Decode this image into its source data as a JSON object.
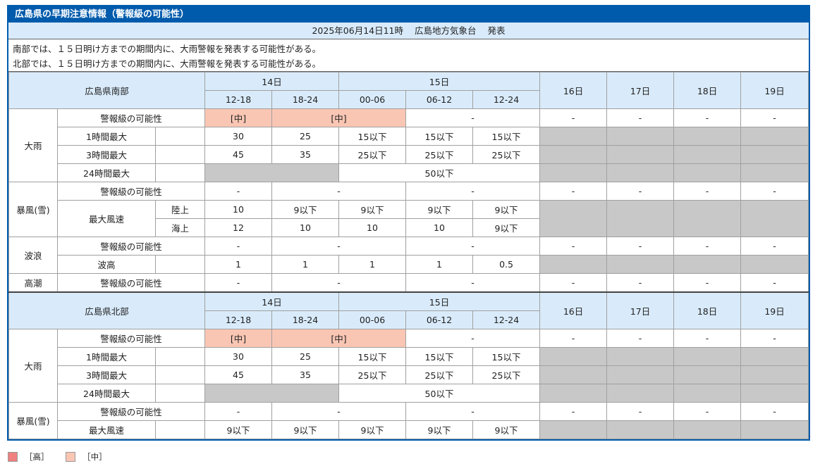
{
  "title": "広島県の早期注意情報（警報級の可能性）",
  "issued": {
    "datetime": "2025年06月14日11時",
    "office": "広島地方気象台",
    "action": "発表"
  },
  "summary": [
    "南部では、１５日明け方までの期間内に、大雨警報を発表する可能性がある。",
    "北部では、１５日明け方までの期間内に、大雨警報を発表する可能性がある。"
  ],
  "header": {
    "day14": "14日",
    "day15": "15日",
    "day16": "16日",
    "day17": "17日",
    "day18": "18日",
    "day19": "19日",
    "slots": [
      "12-18",
      "18-24",
      "00-06",
      "06-12",
      "12-24"
    ]
  },
  "south": {
    "name": "広島県南部",
    "rain": {
      "label": "大雨",
      "possibility_label": "警報級の可能性",
      "possibility": {
        "s1": "[中]",
        "s23": "[中]",
        "s45": "-",
        "d16": "-",
        "d17": "-",
        "d18": "-",
        "d19": "-"
      },
      "h1_label": "1時間最大",
      "h1": [
        "30",
        "25",
        "15以下",
        "15以下",
        "15以下"
      ],
      "h3_label": "3時間最大",
      "h3": [
        "45",
        "35",
        "25以下",
        "25以下",
        "25以下"
      ],
      "h24_label": "24時間最大",
      "h24": "50以下"
    },
    "wind": {
      "label": "暴風(雪)",
      "possibility_label": "警報級の可能性",
      "possibility": {
        "s1": "-",
        "s23": "-",
        "s45": "-",
        "d16": "-",
        "d17": "-",
        "d18": "-",
        "d19": "-"
      },
      "max_label": "最大風速",
      "land_label": "陸上",
      "land": [
        "10",
        "9以下",
        "9以下",
        "9以下",
        "9以下"
      ],
      "sea_label": "海上",
      "sea": [
        "12",
        "10",
        "10",
        "10",
        "9以下"
      ]
    },
    "wave": {
      "label": "波浪",
      "possibility_label": "警報級の可能性",
      "possibility": {
        "s1": "-",
        "s23": "-",
        "s45": "-",
        "d16": "-",
        "d17": "-",
        "d18": "-",
        "d19": "-"
      },
      "height_label": "波高",
      "height": [
        "1",
        "1",
        "1",
        "1",
        "0.5"
      ]
    },
    "tide": {
      "label": "高潮",
      "possibility_label": "警報級の可能性",
      "possibility": {
        "s1": "-",
        "s23": "-",
        "s45": "-",
        "d16": "-",
        "d17": "-",
        "d18": "-",
        "d19": "-"
      }
    }
  },
  "north": {
    "name": "広島県北部",
    "rain": {
      "label": "大雨",
      "possibility_label": "警報級の可能性",
      "possibility": {
        "s1": "[中]",
        "s23": "[中]",
        "s45": "-",
        "d16": "-",
        "d17": "-",
        "d18": "-",
        "d19": "-"
      },
      "h1_label": "1時間最大",
      "h1": [
        "30",
        "25",
        "15以下",
        "15以下",
        "15以下"
      ],
      "h3_label": "3時間最大",
      "h3": [
        "45",
        "35",
        "25以下",
        "25以下",
        "25以下"
      ],
      "h24_label": "24時間最大",
      "h24": "50以下"
    },
    "wind": {
      "label": "暴風(雪)",
      "possibility_label": "警報級の可能性",
      "possibility": {
        "s1": "-",
        "s23": "-",
        "s45": "-",
        "d16": "-",
        "d17": "-",
        "d18": "-",
        "d19": "-"
      },
      "max_label": "最大風速",
      "max": [
        "9以下",
        "9以下",
        "9以下",
        "9以下",
        "9以下"
      ]
    }
  },
  "legend": {
    "high": "［高］",
    "mid": "［中］",
    "high_color": "#f08080",
    "mid_color": "#fac6b4"
  }
}
